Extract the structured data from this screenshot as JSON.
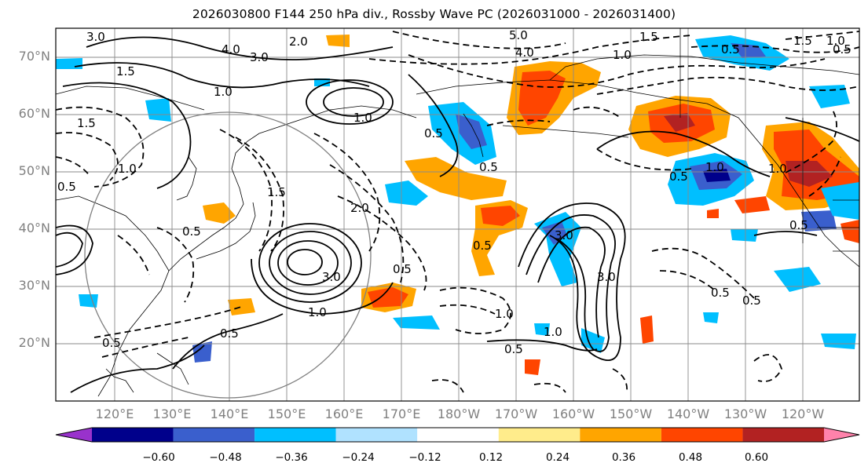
{
  "title": "2026030800 F144 250 hPa div., Rossby Wave PC (2026031000 - 2026031400)",
  "map": {
    "lat_labels": [
      "70°N",
      "60°N",
      "50°N",
      "40°N",
      "30°N",
      "20°N"
    ],
    "lon_labels": [
      "120°E",
      "130°E",
      "140°E",
      "150°E",
      "160°E",
      "170°E",
      "180°W",
      "170°W",
      "160°W",
      "150°W",
      "140°W",
      "130°W",
      "120°W"
    ],
    "contour_labels": [
      "3.0",
      "4.0",
      "3.0",
      "2.0",
      "1.5",
      "1.0",
      "1.5",
      "1.0",
      "0.5",
      "0.5",
      "1.5",
      "5.0",
      "4.0",
      "1.5",
      "1.0",
      "1.5",
      "1.0",
      "0.5",
      "0.5",
      "1.0",
      "1.0",
      "0.5",
      "0.5",
      "0.5",
      "3.0",
      "2.0",
      "3.0",
      "0.5",
      "1.0",
      "0.5",
      "1.0",
      "1.0",
      "0.5",
      "0.5",
      "0.5",
      "0.5",
      "0.5",
      "1.0",
      "3.0",
      "0.5"
    ],
    "colors": {
      "contour": "#000000",
      "grid": "#8a8a8a",
      "coast": "#000000",
      "circle": "#808080"
    }
  },
  "colorbar": {
    "ticks": [
      "−0.60",
      "−0.48",
      "−0.36",
      "−0.24",
      "−0.12",
      "0.12",
      "0.24",
      "0.36",
      "0.48",
      "0.60"
    ],
    "bins": [
      {
        "color": "#9932cc"
      },
      {
        "color": "#00008b"
      },
      {
        "color": "#3a5fcd"
      },
      {
        "color": "#00bfff"
      },
      {
        "color": "#b0e2ff"
      },
      {
        "color": "#ffffff"
      },
      {
        "color": "#ffec8b"
      },
      {
        "color": "#ffa500"
      },
      {
        "color": "#ff4500"
      },
      {
        "color": "#b22222"
      },
      {
        "color": "#ff82ab"
      }
    ]
  }
}
